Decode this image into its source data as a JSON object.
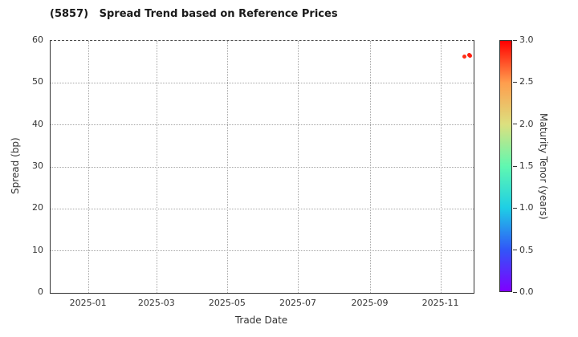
{
  "chart_data": {
    "type": "scatter",
    "title": "(5857)   Spread Trend based on Reference Prices",
    "xlabel": "Trade Date",
    "ylabel": "Spread (bp)",
    "grid": true,
    "x_domain": [
      "2024-11-29",
      "2025-11-29"
    ],
    "ylim": [
      0,
      60
    ],
    "y_ticks": [
      0,
      10,
      20,
      30,
      40,
      50,
      60
    ],
    "x_ticks": [
      {
        "date": "2025-01-01",
        "label": "2025-01"
      },
      {
        "date": "2025-03-01",
        "label": "2025-03"
      },
      {
        "date": "2025-05-01",
        "label": "2025-05"
      },
      {
        "date": "2025-07-01",
        "label": "2025-07"
      },
      {
        "date": "2025-09-01",
        "label": "2025-09"
      },
      {
        "date": "2025-11-01",
        "label": "2025-11"
      }
    ],
    "colorbar": {
      "label": "Maturity Tenor (years)",
      "min": 0.0,
      "max": 3.0,
      "ticks": [
        0.0,
        0.5,
        1.0,
        1.5,
        2.0,
        2.5,
        3.0
      ],
      "tick_labels": [
        "0.0",
        "0.5",
        "1.0",
        "1.5",
        "2.0",
        "2.5",
        "3.0"
      ],
      "stops": [
        {
          "value": 0.0,
          "color": "#7f00ff"
        },
        {
          "value": 0.5,
          "color": "#3156f8"
        },
        {
          "value": 1.0,
          "color": "#1ecfe5"
        },
        {
          "value": 1.5,
          "color": "#60f8b0"
        },
        {
          "value": 2.0,
          "color": "#dce07f"
        },
        {
          "value": 2.5,
          "color": "#ff9d4d"
        },
        {
          "value": 3.0,
          "color": "#ff0000"
        }
      ]
    },
    "points": [
      {
        "date": "2025-11-21",
        "spread_bp": 56.3,
        "maturity_years": 2.85
      },
      {
        "date": "2025-11-25",
        "spread_bp": 56.6,
        "maturity_years": 2.9
      },
      {
        "date": "2025-11-26",
        "spread_bp": 56.4,
        "maturity_years": 2.9
      }
    ]
  }
}
